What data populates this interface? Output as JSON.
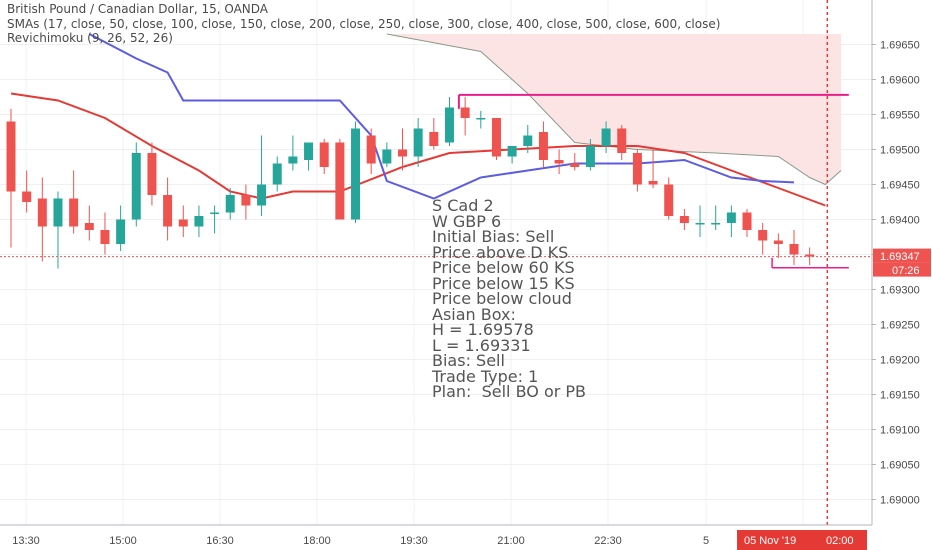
{
  "header": {
    "symbol_title": "British Pound / Canadian Dollar, 15, OANDA",
    "indicator_sma": "SMAs (17, close, 50, close, 100, close, 150, close, 200, close, 250, close, 300, close, 400, close, 500, close, 600, close)",
    "indicator_ichimoku": "Revichimoku (9, 26, 52, 26)"
  },
  "note_lines": [
    "S Cad 2",
    "W GBP 6",
    "Initial Bias: Sell",
    "Price above D KS",
    "Price below 60 KS",
    "Price below 15 KS",
    "Price below cloud",
    "Asian Box:",
    "H = 1.69578",
    "L = 1.69331",
    "Bias: Sell",
    "Trade Type: 1",
    "Plan:  Sell BO or PB"
  ],
  "price_axis": {
    "labels": [
      "1.69650",
      "1.69600",
      "1.69550",
      "1.69500",
      "1.69450",
      "1.69400",
      "1.69350",
      "1.69300",
      "1.69250",
      "1.69200",
      "1.69150",
      "1.69100",
      "1.69050",
      "1.69000"
    ],
    "current_price": "1.69347",
    "countdown": "07:26"
  },
  "time_axis": {
    "labels": [
      "13:30",
      "15:00",
      "16:30",
      "18:00",
      "19:30",
      "21:00",
      "22:30",
      "5"
    ],
    "highlight_date": "05 Nov '19",
    "highlight_time": "02:00"
  },
  "colors": {
    "bull": "#26a69a",
    "bear": "#ef5350",
    "sma_red": "#e53935",
    "ichimoku_blue": "#5c5ce0",
    "cloud_fill": "#fde4e4",
    "cloud_edge": "#8a9a8a",
    "asian_box": "#e91e8c",
    "highlight": "#e53935"
  },
  "chart_data": {
    "type": "candlestick",
    "y_range": [
      1.68985,
      1.69685
    ],
    "candles": [
      {
        "t": 0,
        "o": 1.6954,
        "h": 1.69558,
        "l": 1.6936,
        "c": 1.6944
      },
      {
        "t": 1,
        "o": 1.6944,
        "h": 1.6947,
        "l": 1.6941,
        "c": 1.69425
      },
      {
        "t": 2,
        "o": 1.6943,
        "h": 1.6946,
        "l": 1.6934,
        "c": 1.6939
      },
      {
        "t": 3,
        "o": 1.6939,
        "h": 1.6944,
        "l": 1.6933,
        "c": 1.6943
      },
      {
        "t": 4,
        "o": 1.6943,
        "h": 1.6947,
        "l": 1.6938,
        "c": 1.6939
      },
      {
        "t": 5,
        "o": 1.69395,
        "h": 1.6942,
        "l": 1.6937,
        "c": 1.69385
      },
      {
        "t": 6,
        "o": 1.69385,
        "h": 1.6941,
        "l": 1.6935,
        "c": 1.69365
      },
      {
        "t": 7,
        "o": 1.69365,
        "h": 1.6942,
        "l": 1.69355,
        "c": 1.694
      },
      {
        "t": 8,
        "o": 1.694,
        "h": 1.6951,
        "l": 1.6939,
        "c": 1.69495
      },
      {
        "t": 9,
        "o": 1.69495,
        "h": 1.6951,
        "l": 1.6942,
        "c": 1.69435
      },
      {
        "t": 10,
        "o": 1.69435,
        "h": 1.6946,
        "l": 1.6937,
        "c": 1.6939
      },
      {
        "t": 11,
        "o": 1.694,
        "h": 1.6942,
        "l": 1.69375,
        "c": 1.6939
      },
      {
        "t": 12,
        "o": 1.6939,
        "h": 1.6942,
        "l": 1.69375,
        "c": 1.69405
      },
      {
        "t": 13,
        "o": 1.6941,
        "h": 1.6942,
        "l": 1.6938,
        "c": 1.6941
      },
      {
        "t": 14,
        "o": 1.6941,
        "h": 1.69445,
        "l": 1.694,
        "c": 1.69435
      },
      {
        "t": 15,
        "o": 1.69435,
        "h": 1.6945,
        "l": 1.694,
        "c": 1.6942
      },
      {
        "t": 16,
        "o": 1.6942,
        "h": 1.6952,
        "l": 1.69405,
        "c": 1.6945
      },
      {
        "t": 17,
        "o": 1.6945,
        "h": 1.6949,
        "l": 1.6944,
        "c": 1.6948
      },
      {
        "t": 18,
        "o": 1.6948,
        "h": 1.6952,
        "l": 1.6947,
        "c": 1.6949
      },
      {
        "t": 19,
        "o": 1.69485,
        "h": 1.6951,
        "l": 1.6947,
        "c": 1.6951
      },
      {
        "t": 20,
        "o": 1.6951,
        "h": 1.69515,
        "l": 1.69465,
        "c": 1.69475
      },
      {
        "t": 21,
        "o": 1.6951,
        "h": 1.69515,
        "l": 1.694,
        "c": 1.694
      },
      {
        "t": 22,
        "o": 1.694,
        "h": 1.6954,
        "l": 1.69395,
        "c": 1.6953
      },
      {
        "t": 23,
        "o": 1.6952,
        "h": 1.6953,
        "l": 1.69465,
        "c": 1.6948
      },
      {
        "t": 24,
        "o": 1.6948,
        "h": 1.6951,
        "l": 1.69475,
        "c": 1.695
      },
      {
        "t": 25,
        "o": 1.695,
        "h": 1.6953,
        "l": 1.6947,
        "c": 1.6949
      },
      {
        "t": 26,
        "o": 1.6949,
        "h": 1.69545,
        "l": 1.69475,
        "c": 1.6953
      },
      {
        "t": 27,
        "o": 1.69525,
        "h": 1.69545,
        "l": 1.695,
        "c": 1.69505
      },
      {
        "t": 28,
        "o": 1.6951,
        "h": 1.69575,
        "l": 1.69505,
        "c": 1.6956
      },
      {
        "t": 29,
        "o": 1.6956,
        "h": 1.69575,
        "l": 1.6952,
        "c": 1.69545
      },
      {
        "t": 30,
        "o": 1.69545,
        "h": 1.69555,
        "l": 1.6953,
        "c": 1.69545
      },
      {
        "t": 31,
        "o": 1.69545,
        "h": 1.69545,
        "l": 1.69485,
        "c": 1.6949
      },
      {
        "t": 32,
        "o": 1.6949,
        "h": 1.695,
        "l": 1.6948,
        "c": 1.69505
      },
      {
        "t": 33,
        "o": 1.69505,
        "h": 1.69535,
        "l": 1.69495,
        "c": 1.6952
      },
      {
        "t": 34,
        "o": 1.69525,
        "h": 1.6954,
        "l": 1.69475,
        "c": 1.69485
      },
      {
        "t": 35,
        "o": 1.69485,
        "h": 1.695,
        "l": 1.69465,
        "c": 1.6948
      },
      {
        "t": 36,
        "o": 1.6948,
        "h": 1.69495,
        "l": 1.6947,
        "c": 1.69475
      },
      {
        "t": 37,
        "o": 1.69475,
        "h": 1.69515,
        "l": 1.6947,
        "c": 1.69505
      },
      {
        "t": 38,
        "o": 1.69505,
        "h": 1.6954,
        "l": 1.69495,
        "c": 1.6953
      },
      {
        "t": 39,
        "o": 1.6953,
        "h": 1.69535,
        "l": 1.69485,
        "c": 1.69495
      },
      {
        "t": 40,
        "o": 1.69495,
        "h": 1.695,
        "l": 1.6944,
        "c": 1.6945
      },
      {
        "t": 41,
        "o": 1.69455,
        "h": 1.695,
        "l": 1.69445,
        "c": 1.6945
      },
      {
        "t": 42,
        "o": 1.6945,
        "h": 1.6946,
        "l": 1.694,
        "c": 1.69405
      },
      {
        "t": 43,
        "o": 1.69405,
        "h": 1.69415,
        "l": 1.69385,
        "c": 1.69395
      },
      {
        "t": 44,
        "o": 1.69395,
        "h": 1.6942,
        "l": 1.69375,
        "c": 1.69395
      },
      {
        "t": 45,
        "o": 1.69395,
        "h": 1.6942,
        "l": 1.69385,
        "c": 1.69395
      },
      {
        "t": 46,
        "o": 1.69395,
        "h": 1.6942,
        "l": 1.69375,
        "c": 1.6941
      },
      {
        "t": 47,
        "o": 1.6941,
        "h": 1.69415,
        "l": 1.69375,
        "c": 1.69385
      },
      {
        "t": 48,
        "o": 1.69385,
        "h": 1.69395,
        "l": 1.6935,
        "c": 1.6937
      },
      {
        "t": 49,
        "o": 1.6937,
        "h": 1.6938,
        "l": 1.69345,
        "c": 1.69365
      },
      {
        "t": 50,
        "o": 1.69365,
        "h": 1.69385,
        "l": 1.69335,
        "c": 1.6935
      },
      {
        "t": 51,
        "o": 1.6935,
        "h": 1.6936,
        "l": 1.69335,
        "c": 1.69347
      }
    ],
    "sma_line": [
      [
        0,
        1.6958
      ],
      [
        3,
        1.6957
      ],
      [
        6,
        1.69545
      ],
      [
        9,
        1.69505
      ],
      [
        12,
        1.6947
      ],
      [
        14,
        1.6944
      ],
      [
        16,
        1.6943
      ],
      [
        18,
        1.6944
      ],
      [
        21,
        1.6944
      ],
      [
        25,
        1.69475
      ],
      [
        28,
        1.69495
      ],
      [
        32,
        1.695
      ],
      [
        36,
        1.69505
      ],
      [
        40,
        1.69505
      ],
      [
        43,
        1.69495
      ],
      [
        46,
        1.6947
      ],
      [
        49,
        1.69445
      ],
      [
        52,
        1.6942
      ]
    ],
    "ichimoku_line": [
      [
        5,
        1.69665
      ],
      [
        8,
        1.6963
      ],
      [
        10,
        1.6961
      ],
      [
        11,
        1.6957
      ],
      [
        12,
        1.6957
      ],
      [
        17,
        1.6957
      ],
      [
        21,
        1.6957
      ],
      [
        23,
        1.6952
      ],
      [
        24,
        1.69455
      ],
      [
        27,
        1.6943
      ],
      [
        30,
        1.6946
      ],
      [
        33,
        1.6947
      ],
      [
        36,
        1.6948
      ],
      [
        40,
        1.6948
      ],
      [
        43,
        1.69485
      ],
      [
        46,
        1.6946
      ],
      [
        48,
        1.69455
      ],
      [
        50,
        1.69453
      ]
    ],
    "cloud_upper": 1.69665,
    "cloud_lower": [
      [
        24,
        1.69665
      ],
      [
        30,
        1.6964
      ],
      [
        33,
        1.6958
      ],
      [
        36,
        1.6951
      ],
      [
        40,
        1.695
      ],
      [
        45,
        1.69495
      ],
      [
        49,
        1.6949
      ],
      [
        51,
        1.6946
      ],
      [
        52,
        1.6945
      ],
      [
        53,
        1.6947
      ]
    ],
    "asian_box": {
      "high": 1.69578,
      "low": 1.69331,
      "start": 28.6,
      "end": 53.5,
      "low_start": 48.6
    },
    "current_time_index": 52
  }
}
